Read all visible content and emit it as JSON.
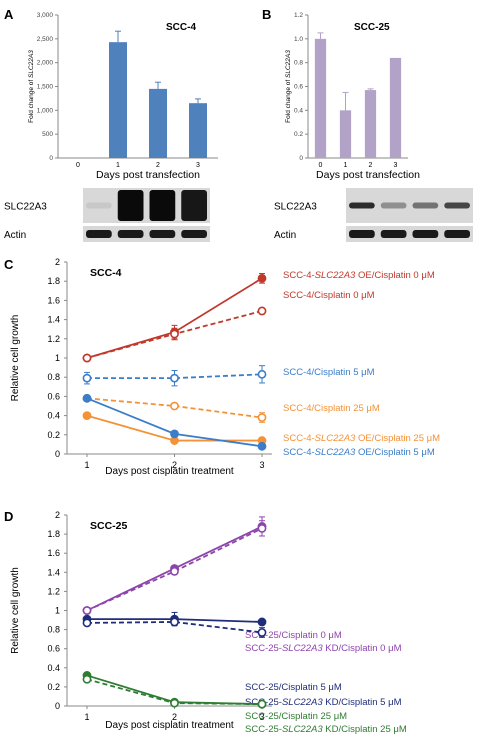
{
  "panels": {
    "A": {
      "letter": "A",
      "ylabel_prefix": "Fold change of ",
      "ylabel_gene": "SLC22A3",
      "blot_labels": [
        "SLC22A3",
        "Actin"
      ]
    },
    "B": {
      "letter": "B",
      "ylabel_prefix": "Fold change of ",
      "ylabel_gene": "SLC22A3",
      "blot_labels": [
        "SLC22A3",
        "Actin"
      ]
    },
    "C": {
      "letter": "C"
    },
    "D": {
      "letter": "D"
    }
  },
  "chart_data": [
    {
      "id": "A",
      "type": "bar",
      "title": "SCC-4",
      "categories": [
        "0",
        "1",
        "2",
        "3"
      ],
      "values": [
        0,
        2430,
        1450,
        1150
      ],
      "errors": [
        0,
        230,
        140,
        90
      ],
      "xlabel": "Days post transfection",
      "ylabel": "Fold change of SLC22A3",
      "ylim": [
        0,
        3000
      ],
      "yticks": [
        "0",
        "500",
        "1,000",
        "1,500",
        "2,000",
        "2,500",
        "3,000"
      ],
      "ytick_values": [
        0,
        500,
        1000,
        1500,
        2000,
        2500,
        3000
      ],
      "color": "#4f81bd"
    },
    {
      "id": "B",
      "type": "bar",
      "title": "SCC-25",
      "categories": [
        "0",
        "1",
        "2",
        "3"
      ],
      "values": [
        1.0,
        0.4,
        0.57,
        0.84
      ],
      "errors": [
        0.05,
        0.15,
        0.01,
        0.0
      ],
      "xlabel": "Days post transfection",
      "ylabel": "Fold change of SLC22A3",
      "ylim": [
        0,
        1.2
      ],
      "yticks": [
        "0",
        "0.2",
        "0.4",
        "0.6",
        "0.8",
        "1.0",
        "1.2"
      ],
      "ytick_values": [
        0,
        0.2,
        0.4,
        0.6,
        0.8,
        1.0,
        1.2
      ],
      "color": "#b3a2c7"
    },
    {
      "id": "C",
      "type": "line",
      "title": "SCC-4",
      "x": [
        1,
        2,
        3
      ],
      "xlabel": "Days post cisplatin treatment",
      "ylabel": "Relative cell growth",
      "ylim": [
        0,
        2
      ],
      "yticks": [
        "0",
        "0.2",
        "0.4",
        "0.6",
        "0.8",
        "1",
        "1.2",
        "1.4",
        "1.6",
        "1.8",
        "2"
      ],
      "ytick_values": [
        0,
        0.2,
        0.4,
        0.6,
        0.8,
        1.0,
        1.2,
        1.4,
        1.6,
        1.8,
        2.0
      ],
      "series": [
        {
          "name_parts": [
            "SCC-4-",
            "SLC22A3",
            " OE/Cisplatin 0 μM"
          ],
          "values": [
            1.0,
            1.27,
            1.83
          ],
          "errors": [
            0,
            0.07,
            0.05
          ],
          "color": "#c0392b",
          "dashed": false,
          "marker": "filled"
        },
        {
          "name_parts": [
            "SCC-4/Cisplatin 0 μM"
          ],
          "values": [
            1.0,
            1.25,
            1.49
          ],
          "errors": [
            0,
            0.06,
            0.03
          ],
          "color": "#c0392b",
          "dashed": true,
          "marker": "open"
        },
        {
          "name_parts": [
            "SCC-4/Cisplatin 5 μM"
          ],
          "values": [
            0.79,
            0.79,
            0.83
          ],
          "errors": [
            0.06,
            0.08,
            0.09
          ],
          "color": "#3a7dc9",
          "dashed": true,
          "marker": "open"
        },
        {
          "name_parts": [
            "SCC-4/Cisplatin 25 μM"
          ],
          "values": [
            0.58,
            0.5,
            0.38
          ],
          "errors": [
            0,
            0,
            0.05
          ],
          "color": "#f39237",
          "dashed": true,
          "marker": "open"
        },
        {
          "name_parts": [
            "SCC-4-",
            "SLC22A3",
            " OE/Cisplatin 25 μM"
          ],
          "values": [
            0.4,
            0.14,
            0.14
          ],
          "errors": [
            0,
            0,
            0
          ],
          "color": "#f39237",
          "dashed": false,
          "marker": "filled"
        },
        {
          "name_parts": [
            "SCC-4-",
            "SLC22A3",
            " OE/Cisplatin 5 μM"
          ],
          "values": [
            0.58,
            0.21,
            0.08
          ],
          "errors": [
            0,
            0,
            0
          ],
          "color": "#3a7dc9",
          "dashed": false,
          "marker": "filled"
        }
      ]
    },
    {
      "id": "D",
      "type": "line",
      "title": "SCC-25",
      "x": [
        1,
        2,
        3
      ],
      "xlabel": "Days post cisplatin treatment",
      "ylabel": "Relative cell growth",
      "ylim": [
        0,
        2
      ],
      "yticks": [
        "0",
        "0.2",
        "0.4",
        "0.6",
        "0.8",
        "1",
        "1.2",
        "1.4",
        "1.6",
        "1.8",
        "2"
      ],
      "ytick_values": [
        0,
        0.2,
        0.4,
        0.6,
        0.8,
        1.0,
        1.2,
        1.4,
        1.6,
        1.8,
        2.0
      ],
      "series": [
        {
          "name_parts": [
            "SCC-25/Cisplatin 0 μM"
          ],
          "values": [
            1.0,
            1.44,
            1.88
          ],
          "errors": [
            0,
            0.02,
            0.1
          ],
          "color": "#8e44ad",
          "dashed": false,
          "marker": "filled"
        },
        {
          "name_parts": [
            "SCC-25-",
            "SLC22A3",
            " KD/Cisplatin 0 μM"
          ],
          "values": [
            1.0,
            1.41,
            1.86
          ],
          "errors": [
            0,
            0.02,
            0.08
          ],
          "color": "#8e44ad",
          "dashed": true,
          "marker": "open"
        },
        {
          "name_parts": [
            "SCC-25/Cisplatin 5 μM"
          ],
          "values": [
            0.91,
            0.91,
            0.88
          ],
          "errors": [
            0,
            0.07,
            0
          ],
          "color": "#1f2d7a",
          "dashed": false,
          "marker": "filled"
        },
        {
          "name_parts": [
            "SCC-25-",
            "SLC22A3",
            " KD/Cisplatin 5 μM"
          ],
          "values": [
            0.87,
            0.88,
            0.77
          ],
          "errors": [
            0,
            0,
            0.05
          ],
          "color": "#1f2d7a",
          "dashed": true,
          "marker": "open"
        },
        {
          "name_parts": [
            "SCC-25/Cisplatin 25 μM"
          ],
          "values": [
            0.32,
            0.04,
            0.02
          ],
          "errors": [
            0,
            0,
            0
          ],
          "color": "#2e7d32",
          "dashed": false,
          "marker": "filled"
        },
        {
          "name_parts": [
            "SCC-25-",
            "SLC22A3",
            " KD/Cisplatin 25 μM"
          ],
          "values": [
            0.28,
            0.03,
            0.02
          ],
          "errors": [
            0,
            0,
            0
          ],
          "color": "#2e7d32",
          "dashed": true,
          "marker": "open"
        }
      ]
    }
  ]
}
